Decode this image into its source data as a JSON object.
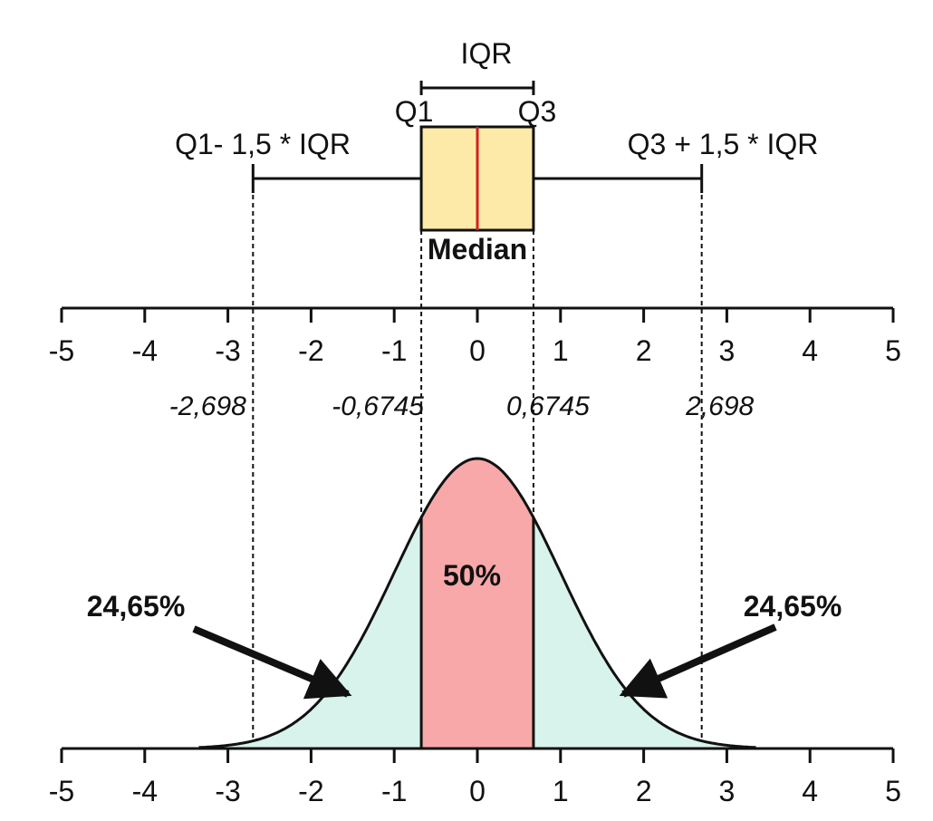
{
  "labels": {
    "iqr": "IQR",
    "q1": "Q1",
    "q3": "Q3",
    "lower_fence": "Q1- 1,5 * IQR",
    "upper_fence": "Q3 + 1,5 * IQR",
    "median": "Median"
  },
  "quantities": {
    "q1": -0.6745,
    "q3": 0.6745,
    "median": 0,
    "lower_fence": -2.698,
    "upper_fence": 2.698
  },
  "value_labels": [
    "-2,698",
    "-0,6745",
    "0,6745",
    "2,698"
  ],
  "axis_ticks": [
    "-5",
    "-4",
    "-3",
    "-2",
    "-1",
    "0",
    "1",
    "2",
    "3",
    "4",
    "5"
  ],
  "areas": {
    "center": "50%",
    "left": "24,65%",
    "right": "24,65%"
  },
  "colors": {
    "box_fill": "#fde9a8",
    "median_line": "#d42020",
    "center_fill": "#f8a8a8",
    "tail_fill": "#d8f2ec",
    "ink": "#111111"
  }
}
